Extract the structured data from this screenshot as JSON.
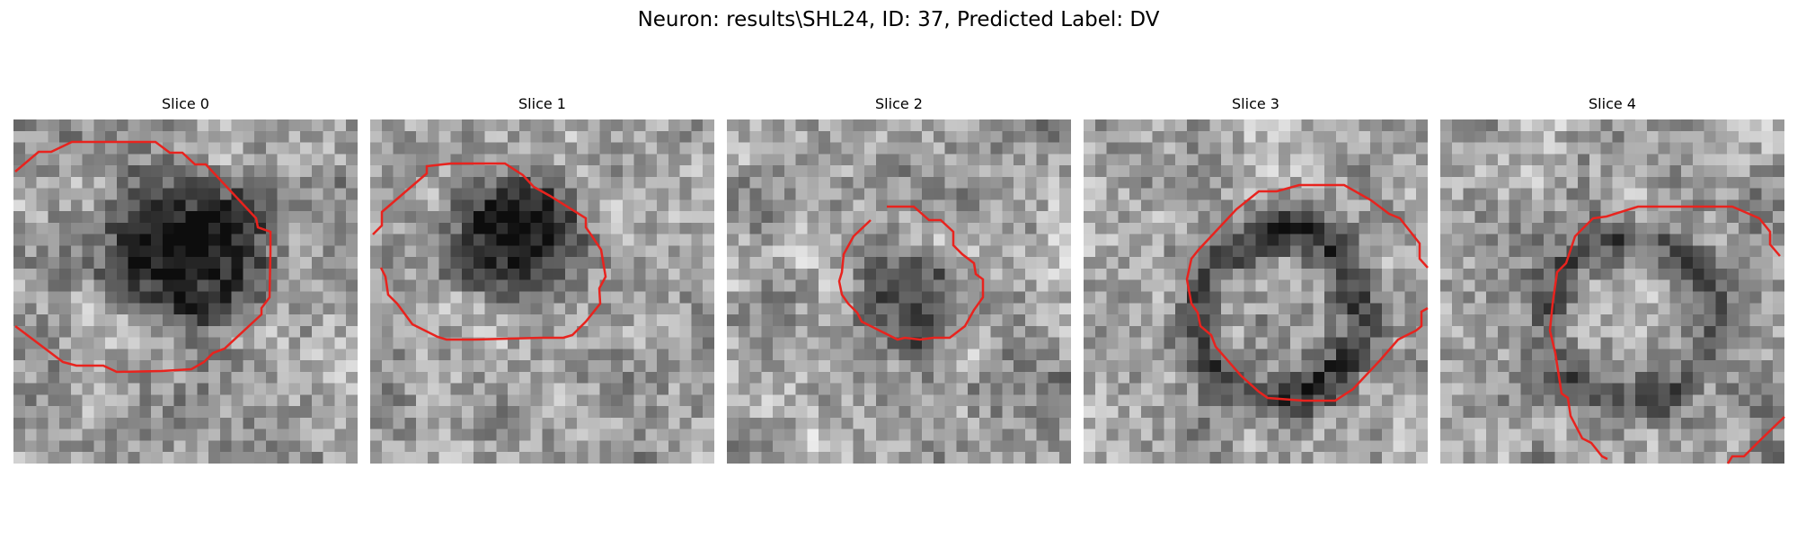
{
  "figure": {
    "title": "Neuron: results\\SHL24, ID: 37, Predicted Label: DV"
  },
  "panels": [
    {
      "title": "Slice 0",
      "contour_color": "#e8231e"
    },
    {
      "title": "Slice 1",
      "contour_color": "#e8231e"
    },
    {
      "title": "Slice 2",
      "contour_color": "#e8231e"
    },
    {
      "title": "Slice 3",
      "contour_color": "#e8231e"
    },
    {
      "title": "Slice 4",
      "contour_color": "#e8231e"
    }
  ]
}
